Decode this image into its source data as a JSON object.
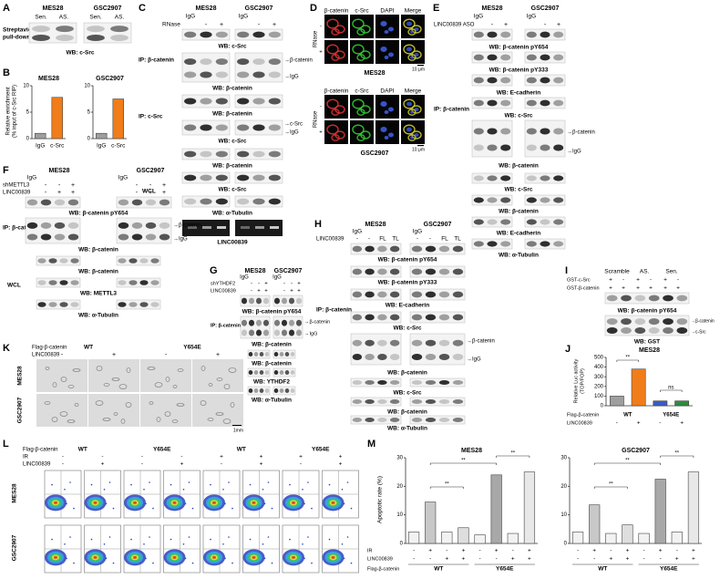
{
  "A": {
    "letter": "A",
    "cells": [
      "MES28",
      "GSC2907"
    ],
    "lanes": [
      "Sen.",
      "AS.",
      "Sen.",
      "AS."
    ],
    "row": [
      "Streptavidin",
      "pull-down"
    ],
    "wb": "WB: c-Src"
  },
  "B": {
    "letter": "B",
    "ylabel": [
      "Relative enrichment",
      "(% input of c-Src RIP)"
    ],
    "charts": [
      {
        "type": "bar",
        "title": "MES28",
        "categories": [
          "IgG",
          "c-Src"
        ],
        "values": [
          1,
          7.8
        ],
        "colors": [
          "#9e9e9e",
          "#f07d1a"
        ],
        "ylim": [
          0,
          10
        ],
        "yticks": [
          0,
          5,
          10
        ]
      },
      {
        "type": "bar",
        "title": "GSC2907",
        "categories": [
          "IgG",
          "c-Src"
        ],
        "values": [
          1,
          7.5
        ],
        "colors": [
          "#9e9e9e",
          "#f07d1a"
        ],
        "ylim": [
          0,
          10
        ],
        "yticks": [
          0,
          5,
          10
        ]
      }
    ]
  },
  "C": {
    "letter": "C",
    "cells": [
      "MES28",
      "GSC2907"
    ],
    "igg": "IgG",
    "rnase": "RNase",
    "signs": [
      "-",
      "+",
      "-",
      "+"
    ],
    "ip": [
      "IP: β-catenin",
      "IP: c-Src"
    ],
    "wb": [
      "WB: c-Src",
      "WB: β-catenin",
      "WB: β-catenin",
      "WB: c-Src",
      "WB: β-catenin",
      "WB: c-Src",
      "WB: α-Tubulin"
    ],
    "arrows": [
      "→β-catenin",
      "→IgG",
      "→c-Src",
      "→IgG"
    ],
    "wcl": "WCL",
    "gel": "LINC00839"
  },
  "D": {
    "letter": "D",
    "cols": [
      "β-catenin",
      "c-Src",
      "DAPI",
      "Merge"
    ],
    "rnase": "RNase",
    "signs": [
      "-",
      "+"
    ],
    "cells": [
      "MES28",
      "GSC2907"
    ],
    "scale": "10 μm"
  },
  "E": {
    "letter": "E",
    "cells": [
      "MES28",
      "GSC2907"
    ],
    "igg": "IgG",
    "aso": "LINC00839 ASO",
    "signs": [
      "-",
      "+",
      "-",
      "+"
    ],
    "ip": "IP: β-catenin",
    "wb": [
      "WB: β-catenin pY654",
      "WB: β-catenin pY333",
      "WB: E-cadherin",
      "WB: c-Src",
      "WB: β-catenin",
      "WB: c-Src",
      "WB: β-catenin",
      "WB: E-cadherin",
      "WB: α-Tubulin"
    ],
    "arrows": [
      "→β-catenin",
      "→IgG"
    ]
  },
  "F": {
    "letter": "F",
    "cells": [
      "MES28",
      "GSC2907"
    ],
    "igg": "IgG",
    "rows": [
      "shMETTL3",
      "LINC00839"
    ],
    "signs": [
      [
        "-",
        "-",
        "+",
        "-",
        "-",
        "+"
      ],
      [
        "-",
        "+",
        "+",
        "-",
        "+",
        "+"
      ]
    ],
    "ip": "IP: β-catenin",
    "wb": [
      "WB: β-catenin pY654",
      "WB: β-catenin",
      "WB: β-catenin",
      "WB: METTL3",
      "WB: α-Tubulin"
    ],
    "arrows": [
      "→β-catenin",
      "→IgG"
    ],
    "wcl": "WCL"
  },
  "G": {
    "letter": "G",
    "cells": [
      "MES28",
      "GSC2907"
    ],
    "igg": "IgG",
    "rows": [
      "shYTHDF2",
      "LINC00839"
    ],
    "signs": [
      [
        "-",
        "-",
        "+",
        "-",
        "-",
        "+"
      ],
      [
        "-",
        "+",
        "+",
        "-",
        "+",
        "+"
      ]
    ],
    "ip": "IP: β-catenin",
    "wb": [
      "WB: β-catenin pY654",
      "WB: β-catenin",
      "WB: β-catenin",
      "WB: YTHDF2",
      "WB: α-Tubulin"
    ],
    "arrows": [
      "→β-catenin",
      "→IgG"
    ],
    "wcl": "WCL"
  },
  "H": {
    "letter": "H",
    "cells": [
      "MES28",
      "GSC2907"
    ],
    "igg": "IgG",
    "row": "LINC00839",
    "signs": [
      "-",
      "-",
      "FL",
      "TL",
      "-",
      "-",
      "FL",
      "TL"
    ],
    "ip": "IP: β-catenin",
    "wb": [
      "WB: β-catenin pY654",
      "WB: β-catenin pY333",
      "WB: E-cadherin",
      "WB: c-Src",
      "WB: β-catenin",
      "WB: c-Src",
      "WB: β-catenin",
      "WB: α-Tubulin"
    ],
    "arrows": [
      "→β-catenin",
      "→IgG"
    ]
  },
  "I": {
    "letter": "I",
    "groups": [
      "Scramble",
      "AS.",
      "Sen."
    ],
    "rows": [
      "GST-c-Src",
      "GST-β-catenin"
    ],
    "signs": [
      [
        "+",
        "-",
        "+",
        "-",
        "+",
        "-"
      ],
      [
        "+",
        "+",
        "+",
        "+",
        "+",
        "+"
      ]
    ],
    "wb": [
      "WB: β-catenin pY654",
      "WB: GST"
    ],
    "arrows": [
      "→β-catenin",
      "→c-Src"
    ]
  },
  "J": {
    "letter": "J",
    "ylabel": [
      "Relative Luc activity",
      "(TOP/FOP)"
    ],
    "chart": {
      "type": "bar",
      "title": "MES28",
      "values": [
        100,
        380,
        50,
        50
      ],
      "colors": [
        "#9e9e9e",
        "#f07d1a",
        "#3a5bc7",
        "#2e8b3e"
      ],
      "ylim": [
        0,
        500
      ],
      "yticks": [
        0,
        100,
        200,
        300,
        400,
        500
      ]
    },
    "sig": [
      "**",
      "ns"
    ],
    "rows": [
      "Flag-β-catenin",
      "LINC00839"
    ],
    "groups": [
      "WT",
      "Y654E"
    ],
    "signs": [
      "-",
      "+",
      "-",
      "+"
    ]
  },
  "K": {
    "letter": "K",
    "flag": "Flag-β-catenin",
    "linc": "LINC00839",
    "groups": [
      "WT",
      "Y654E"
    ],
    "signs": [
      "-",
      "+",
      "-",
      "+"
    ],
    "cells": [
      "MES28",
      "GSC2907"
    ],
    "scale": "1mm"
  },
  "L": {
    "letter": "L",
    "rows": [
      "Flag-β-catenin",
      "IR",
      "LINC00839"
    ],
    "groups": [
      "WT",
      "Y654E",
      "WT",
      "Y654E"
    ],
    "ir": [
      "-",
      "-",
      "-",
      "-",
      "+",
      "+",
      "+",
      "+"
    ],
    "linc": [
      "-",
      "+",
      "-",
      "+",
      "-",
      "+",
      "-",
      "+"
    ],
    "cells": [
      "MES28",
      "GSC2907"
    ]
  },
  "M": {
    "letter": "M",
    "ylabel": "Apoptotic rate (%)",
    "charts": [
      {
        "type": "bar",
        "title": "MES28",
        "values": [
          4,
          14.5,
          4,
          5.5,
          3,
          24,
          3.5,
          25
        ],
        "colors": [
          "#f2f2f2",
          "#c8c8c8",
          "#f2f2f2",
          "#dedede",
          "#f2f2f2",
          "#a8a8a8",
          "#f2f2f2",
          "#e8e8e8"
        ],
        "ylim": [
          0,
          30
        ],
        "yticks": [
          0,
          10,
          20,
          30
        ]
      },
      {
        "type": "bar",
        "title": "GSC2907",
        "values": [
          4,
          13.5,
          3.5,
          6.5,
          3.5,
          22.5,
          4,
          25
        ],
        "colors": [
          "#f2f2f2",
          "#c8c8c8",
          "#f2f2f2",
          "#dedede",
          "#f2f2f2",
          "#a8a8a8",
          "#f2f2f2",
          "#e8e8e8"
        ],
        "ylim": [
          0,
          30
        ],
        "yticks": [
          0,
          10,
          20,
          30
        ]
      }
    ],
    "rows": [
      "IR",
      "LINC00839",
      "Flag-β-catenin"
    ],
    "ir": [
      "-",
      "+",
      "-",
      "+",
      "-",
      "+",
      "-",
      "+"
    ],
    "linc": [
      "-",
      "-",
      "+",
      "+",
      "-",
      "-",
      "+",
      "+"
    ],
    "groups": [
      "WT",
      "Y654E"
    ],
    "sig": [
      "**",
      "**",
      "**"
    ]
  }
}
